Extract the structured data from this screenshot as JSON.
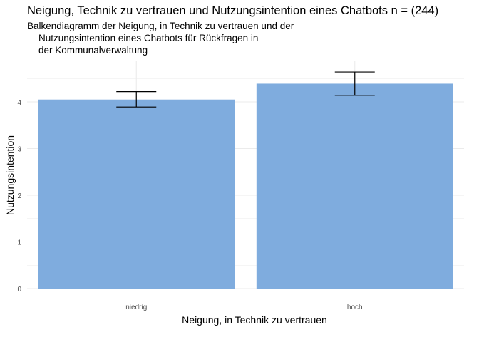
{
  "chart_data": {
    "type": "bar",
    "title": "Neigung, Technik zu vertrauen und Nutzungsintention eines Chatbots n = (244)",
    "subtitle_lines": [
      "Balkendiagramm der Neigung, in Technik zu vertrauen und der",
      "Nutzungsintention eines Chatbots für Rückfragen in",
      "der Kommunalverwaltung"
    ],
    "xlabel": "Neigung, in Technik zu vertrauen",
    "ylabel": "Nutzungsintention",
    "categories": [
      "niedrig",
      "hoch"
    ],
    "values": [
      4.05,
      4.39
    ],
    "error_bars": [
      {
        "low": 3.89,
        "high": 4.22
      },
      {
        "low": 4.14,
        "high": 4.64
      }
    ],
    "ylim": [
      0,
      4.85
    ],
    "yticks": [
      0,
      1,
      2,
      3,
      4
    ],
    "grid": true,
    "bar_color": "#7FACDE",
    "errorbar_color": "#000000",
    "gridline_color": "#EBEBEB"
  }
}
